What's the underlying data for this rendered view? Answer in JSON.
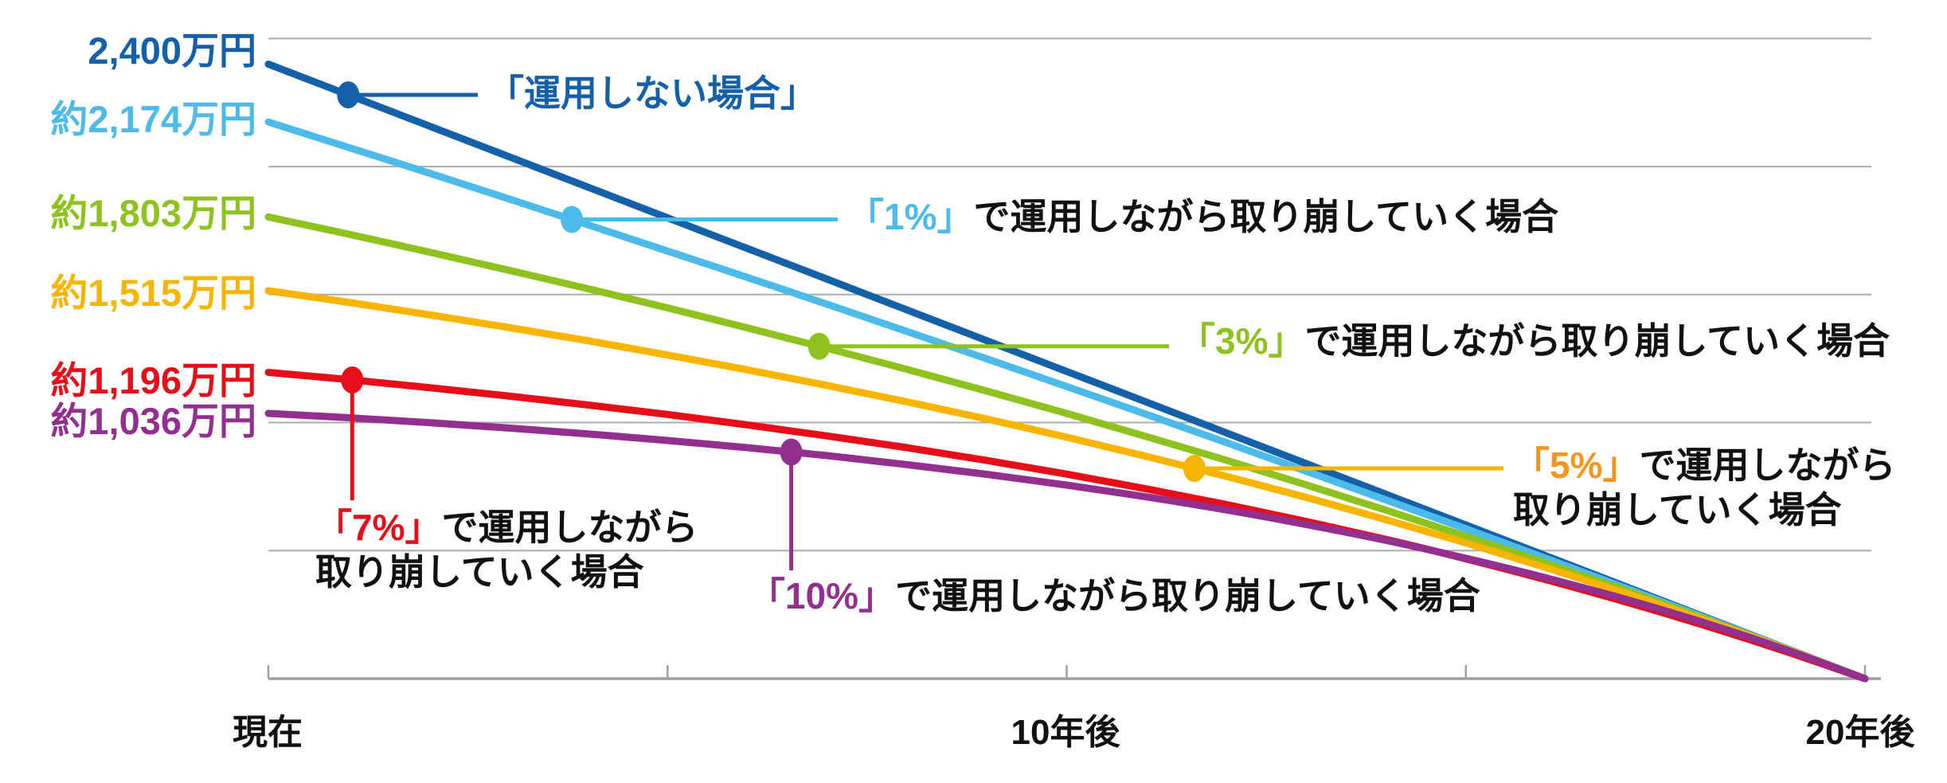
{
  "chart_data": {
    "type": "line",
    "title": "",
    "description_visible_text_only": true,
    "x_axis": {
      "labels": [
        "現在",
        "10年後",
        "20年後"
      ],
      "tick_years": [
        0,
        5,
        10,
        15,
        20
      ],
      "range_years": [
        0,
        20
      ]
    },
    "y_axis": {
      "unit": "万円",
      "min": 0,
      "max": 2500,
      "gridline_values": [
        500,
        1000,
        1500,
        2000,
        2500
      ],
      "grid": true
    },
    "legend_position": "callouts-on-lines",
    "years": [
      0,
      1,
      2,
      3,
      4,
      5,
      6,
      7,
      8,
      9,
      10,
      11,
      12,
      13,
      14,
      15,
      16,
      17,
      18,
      19,
      20
    ],
    "series": [
      {
        "id": "no-investment",
        "rate_percent": 0,
        "color": "#1561A9",
        "start_value": 2400,
        "start_value_label": "2,400万円",
        "end_value": 0,
        "marker_year": 1.0,
        "values_by_year": [
          2400,
          2280,
          2160,
          2040,
          1920,
          1800,
          1680,
          1560,
          1440,
          1320,
          1200,
          1080,
          960,
          840,
          720,
          600,
          480,
          360,
          240,
          120,
          0
        ],
        "annotation": {
          "prefix": "「運用しない場合」",
          "suffix": ""
        }
      },
      {
        "id": "1pct",
        "rate_percent": 1,
        "color": "#4DBBE9",
        "start_value": 2174,
        "start_value_label": "約2,174万円",
        "end_value": 0,
        "marker_year": 3.8,
        "values_by_year": [
          2174,
          2075,
          1976,
          1875,
          1773,
          1670,
          1567,
          1462,
          1356,
          1249,
          1141,
          1032,
          922,
          810,
          698,
          585,
          470,
          354,
          237,
          119,
          0
        ],
        "annotation": {
          "prefix": "「1%」",
          "suffix": "で運用しながら取り崩していく場合"
        }
      },
      {
        "id": "3pct",
        "rate_percent": 3,
        "color": "#8EC31F",
        "start_value": 1803,
        "start_value_label": "約1,803万円",
        "end_value": 0,
        "marker_year": 6.9,
        "values_by_year": [
          1803,
          1736,
          1667,
          1596,
          1523,
          1448,
          1370,
          1290,
          1208,
          1123,
          1036,
          945,
          853,
          757,
          658,
          556,
          452,
          344,
          233,
          118,
          0
        ],
        "annotation": {
          "prefix": "「3%」",
          "suffix": "で運用しながら取り崩していく場合"
        }
      },
      {
        "id": "5pct",
        "rate_percent": 5,
        "color": "#F8B500",
        "start_value": 1515,
        "start_value_label": "約1,515万円",
        "end_value": 0,
        "marker_year": 11.6,
        "values_by_year": [
          1515,
          1470,
          1422,
          1372,
          1320,
          1264,
          1206,
          1145,
          1081,
          1014,
          943,
          868,
          790,
          708,
          621,
          530,
          434,
          334,
          228,
          117,
          0
        ],
        "annotation": {
          "prefix": "「5%」",
          "prefix_color": "#F7941D",
          "suffix": "で運用しながら",
          "line2": "取り崩していく場合"
        }
      },
      {
        "id": "7pct",
        "rate_percent": 7,
        "color": "#E60E19",
        "start_value": 1196,
        "start_value_label": "約1,196万円",
        "end_value": 0,
        "marker_year": 1.05,
        "values_by_year": [
          1196,
          1168,
          1137,
          1104,
          1069,
          1032,
          991,
          948,
          902,
          852,
          799,
          741,
          680,
          614,
          544,
          468,
          387,
          300,
          207,
          107,
          0
        ],
        "annotation": {
          "prefix": "「7%」",
          "suffix": "で運用しながら",
          "line2": "取り崩していく場合"
        }
      },
      {
        "id": "10pct",
        "rate_percent": 10,
        "color": "#93308F",
        "start_value": 1036,
        "start_value_label": "約1,036万円",
        "end_value": 0,
        "marker_year": 6.55,
        "values_by_year": [
          1036,
          1019,
          1000,
          979,
          956,
          930,
          902,
          871,
          836,
          798,
          756,
          710,
          659,
          602,
          540,
          470,
          394,
          310,
          217,
          114,
          0
        ],
        "annotation": {
          "prefix": "「10%」",
          "suffix": "で運用しながら取り崩していく場合"
        }
      }
    ]
  }
}
